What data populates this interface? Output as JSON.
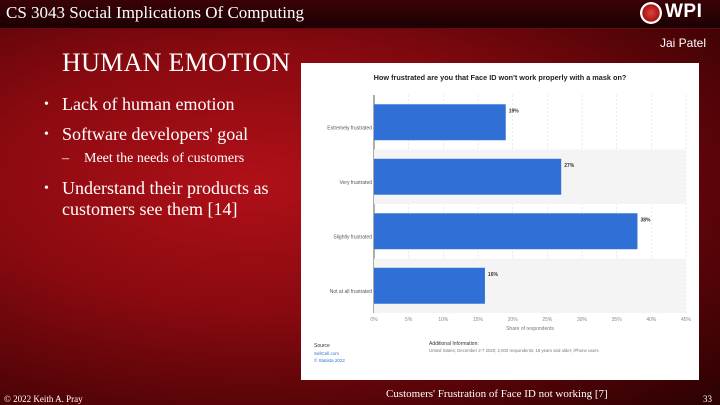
{
  "header": {
    "course_title": "CS 3043 Social Implications Of Computing",
    "logo_text": "WPI"
  },
  "presenter": "Jai Patel",
  "slide": {
    "title": "HUMAN EMOTION",
    "bullets": [
      {
        "text": "Lack of human emotion"
      },
      {
        "text": "Software developers' goal",
        "sub": "Meet the needs of customers"
      },
      {
        "text": "Understand their products as customers see them [14]"
      }
    ]
  },
  "chart_data": {
    "type": "bar",
    "orientation": "horizontal",
    "title": "How frustrated are you that Face ID won't work properly with a mask on?",
    "categories": [
      "Extremely frustrated",
      "Very frustrated",
      "Slightly frustrated",
      "Not at all frustrated"
    ],
    "values": [
      19,
      27,
      38,
      16
    ],
    "value_labels": [
      "19%",
      "27%",
      "38%",
      "16%"
    ],
    "xlim": [
      0,
      45
    ],
    "x_ticks": [
      "0%",
      "5%",
      "10%",
      "15%",
      "20%",
      "25%",
      "30%",
      "35%",
      "40%",
      "45%"
    ],
    "xlabel": "Share of respondents",
    "bar_color": "#2f6fd6",
    "source_heading": "Source",
    "source_lines": [
      "SellCell.com",
      "© Statista 2022"
    ],
    "info_heading": "Additional Information:",
    "info_text": "United States; December 2-7 2020; 2,000 respondents; 18 years and older; iPhone users"
  },
  "footer": {
    "copyright": "© 2022 Keith A. Pray",
    "caption": "Customers' Frustration of Face ID not working [7]",
    "page": "33"
  }
}
